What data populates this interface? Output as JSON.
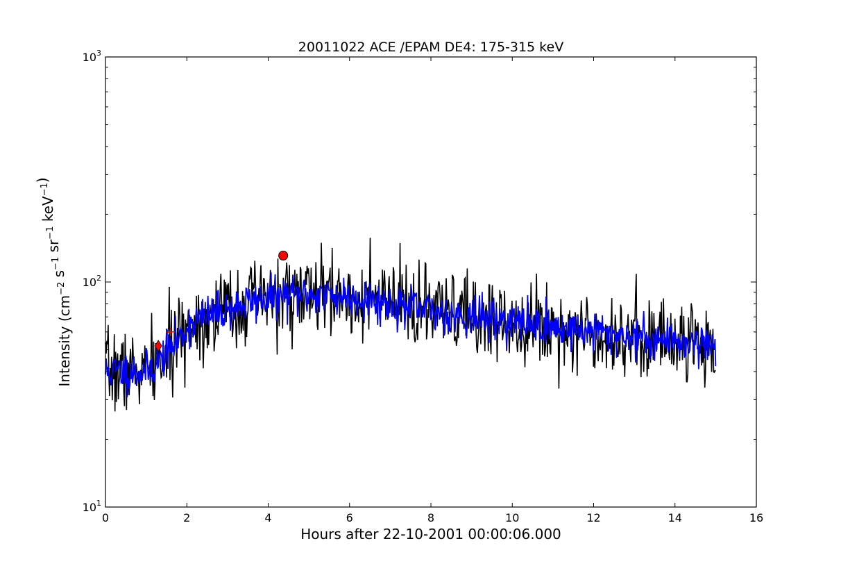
{
  "chart_data": {
    "type": "line",
    "title": "20011022 ACE /EPAM DE4: 175-315 keV",
    "xlabel": "Hours after 22-10-2001 00:00:06.000",
    "ylabel": {
      "parts": [
        {
          "text": "Intensity (cm",
          "sup": false
        },
        {
          "text": "−2",
          "sup": true
        },
        {
          "text": " s",
          "sup": false
        },
        {
          "text": "−1",
          "sup": true
        },
        {
          "text": " sr",
          "sup": false
        },
        {
          "text": "−1",
          "sup": true
        },
        {
          "text": " keV",
          "sup": false
        },
        {
          "text": "−1",
          "sup": true
        },
        {
          "text": ")",
          "sup": false
        }
      ]
    },
    "xlim": [
      0,
      16
    ],
    "ylim": [
      10,
      1000
    ],
    "yscale": "log",
    "grid": false,
    "xticks": [
      0,
      2,
      4,
      6,
      8,
      10,
      12,
      14,
      16
    ],
    "xtick_labels": [
      "0",
      "2",
      "4",
      "6",
      "8",
      "10",
      "12",
      "14",
      "16"
    ],
    "yticks": [
      {
        "value": 10,
        "base": "10",
        "exp": "1"
      },
      {
        "value": 100,
        "base": "10",
        "exp": "2"
      },
      {
        "value": 1000,
        "base": "10",
        "exp": "3"
      }
    ],
    "series": [
      {
        "style": "raw",
        "color": "#000000",
        "x_start": 0.0,
        "x_end": 15.0,
        "n_points": 900,
        "envelope": {
          "x": [
            0,
            1.0,
            1.3,
            1.8,
            2.1,
            3.0,
            4.0,
            5.0,
            6.0,
            7.0,
            8.0,
            9.0,
            10.0,
            11.0,
            12.0,
            13.0,
            14.0,
            15.0
          ],
          "y": [
            40,
            40,
            44,
            55,
            66,
            76,
            85,
            88,
            86,
            80,
            74,
            70,
            67,
            63,
            60,
            57,
            55,
            53
          ]
        },
        "spread_log10": 0.09,
        "seed": 7
      },
      {
        "style": "smoothed",
        "color": "#0000ff",
        "x_start": 0.0,
        "x_end": 15.0,
        "n_points": 900,
        "envelope_from": "raw",
        "spread_log10": 0.045,
        "seed": 11
      }
    ],
    "markers": [
      {
        "x": 4.37,
        "y": 131,
        "shape": "circle",
        "color": "#ff0000"
      },
      {
        "x": 1.3,
        "y": 52,
        "shape": "diamond",
        "color": "#ff0000"
      }
    ],
    "tick_marks": [
      {
        "x": 1.6,
        "y": 60,
        "color": "#ff0000"
      }
    ]
  }
}
